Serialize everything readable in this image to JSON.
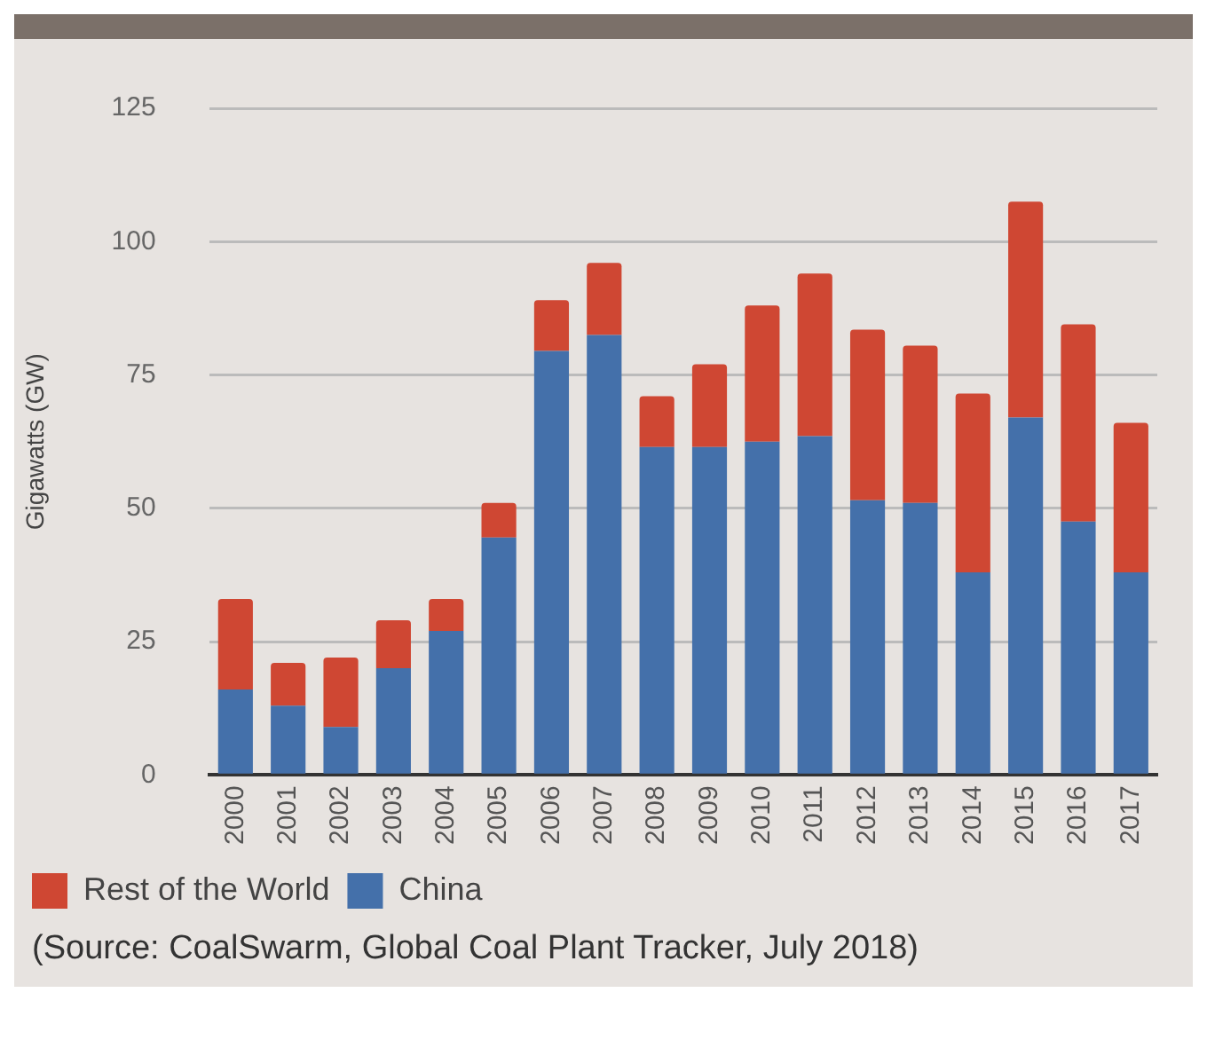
{
  "chart_data": {
    "type": "bar",
    "ylabel": "Gigawatts (GW)",
    "categories": [
      "2000",
      "2001",
      "2002",
      "2003",
      "2004",
      "2005",
      "2006",
      "2007",
      "2008",
      "2009",
      "2010",
      "2011",
      "2012",
      "2013",
      "2014",
      "2015",
      "2016",
      "2017"
    ],
    "series": [
      {
        "name": "China",
        "color": "#4470aa",
        "values": [
          16,
          13,
          9,
          20,
          27,
          44.5,
          79.5,
          82.5,
          61.5,
          61.5,
          62.5,
          63.5,
          51.5,
          51,
          38,
          67,
          47.5,
          38
        ]
      },
      {
        "name": "Rest of the World",
        "color": "#cf4733",
        "values": [
          17,
          8,
          13,
          9,
          6,
          6.5,
          9.5,
          13.5,
          9.5,
          15.5,
          25.5,
          30.5,
          32,
          29.5,
          33.5,
          40.5,
          37,
          28
        ]
      }
    ],
    "stacked": true,
    "ylim": [
      0,
      125
    ],
    "yticks": [
      0,
      25,
      50,
      75,
      100,
      125
    ],
    "grid": "y",
    "legend": "bottom left",
    "annotations": [
      "(Source: CoalSwarm, Global Coal Plant Tracker, July 2018)"
    ]
  }
}
